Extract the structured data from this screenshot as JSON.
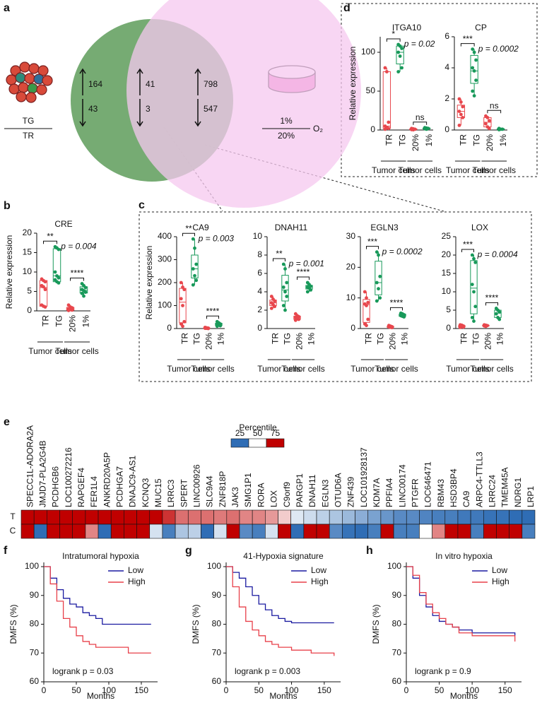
{
  "chart_data": [
    {
      "type": "venn",
      "panel": "a",
      "sets": [
        {
          "label_top": "TG",
          "label_bottom": "TR"
        },
        {
          "label_top": "1%",
          "label_bottom": "20%",
          "unit": "O₂"
        }
      ],
      "regions": [
        {
          "up": 164,
          "down": 43
        },
        {
          "up": 41,
          "down": 3
        },
        {
          "up": 798,
          "down": 547
        }
      ],
      "colors": [
        "#6fa76c",
        "#f6c8ef"
      ]
    },
    {
      "type": "box",
      "panel": "b",
      "title": "CRE",
      "ylabel": "Relative expression",
      "categories": [
        "TR",
        "TG",
        "20%",
        "1%"
      ],
      "groups": [
        "Tumor cells",
        "Tumor cells"
      ],
      "colors": [
        "#e8474d",
        "#18995a",
        "#e8474d",
        "#18995a"
      ],
      "points": [
        [
          8.2,
          7.8,
          7.5,
          6.5,
          6.2,
          5.5,
          1.5,
          1.2,
          1.0
        ],
        [
          16.5,
          16.2,
          15.8,
          10,
          9,
          8.5,
          8,
          7.5,
          7.2
        ],
        [
          1.5,
          1,
          0.8,
          0.5,
          0.3,
          0.2,
          0.1
        ],
        [
          7,
          6.5,
          6,
          5.5,
          5.2,
          4.8,
          4.5,
          3.8
        ]
      ],
      "boxes": [
        [
          1.0,
          1.2,
          6.0,
          7.8,
          8.2
        ],
        [
          7.2,
          7.5,
          9,
          16,
          16.5
        ],
        [
          0.1,
          0.2,
          0.5,
          0.9,
          1.5
        ],
        [
          3.8,
          4.6,
          5.3,
          6.2,
          7
        ]
      ],
      "annotations": [
        "**",
        "p = 0.004",
        "****"
      ],
      "ylim": [
        0,
        20
      ],
      "yticks": [
        0,
        5,
        10,
        15,
        20
      ]
    },
    {
      "type": "box",
      "panel": "c",
      "title": "CA9",
      "ylabel": "Relative expression",
      "categories": [
        "TR",
        "TG",
        "20%",
        "1%"
      ],
      "groups": [
        "Tumor cells",
        "Tumor cells"
      ],
      "colors": [
        "#e8474d",
        "#18995a",
        "#e8474d",
        "#18995a"
      ],
      "points": [
        [
          200,
          180,
          170,
          130,
          100,
          30,
          20,
          10
        ],
        [
          390,
          350,
          280,
          260,
          230,
          210,
          190
        ],
        [
          5,
          3,
          2,
          1,
          1,
          0
        ],
        [
          30,
          25,
          20,
          18,
          15,
          12,
          10
        ]
      ],
      "boxes": [
        [
          10,
          25,
          115,
          175,
          200
        ],
        [
          190,
          220,
          260,
          320,
          390
        ],
        [
          0,
          1,
          1.5,
          2.5,
          5
        ],
        [
          10,
          13,
          18,
          23,
          30
        ]
      ],
      "annotations": [
        "**",
        "p = 0.003",
        "****"
      ],
      "ylim": [
        0,
        400
      ],
      "yticks": [
        0,
        100,
        200,
        300,
        400
      ]
    },
    {
      "type": "box",
      "title": "DNAH11",
      "categories": [
        "TR",
        "TG",
        "20%",
        "1%"
      ],
      "groups": [
        "Tumor cells",
        "Tumor cells"
      ],
      "colors": [
        "#e8474d",
        "#18995a",
        "#e8474d",
        "#18995a"
      ],
      "points": [
        [
          3.5,
          3.2,
          3,
          2.8,
          2.6,
          2.4,
          2.2
        ],
        [
          7,
          6.5,
          5,
          4.5,
          4,
          3.5,
          2.5,
          2
        ],
        [
          1.6,
          1.4,
          1.3,
          1.2,
          1.1,
          1,
          0.9
        ],
        [
          5,
          4.8,
          4.6,
          4.5,
          4.4,
          4.2,
          4
        ]
      ],
      "boxes": [
        [
          2.2,
          2.5,
          2.8,
          3.1,
          3.5
        ],
        [
          2,
          3,
          4.2,
          5.8,
          7
        ],
        [
          0.9,
          1,
          1.2,
          1.35,
          1.6
        ],
        [
          4,
          4.3,
          4.5,
          4.7,
          5
        ]
      ],
      "annotations": [
        "**",
        "p = 0.001",
        "****"
      ],
      "ylim": [
        0,
        10
      ],
      "yticks": [
        0,
        2,
        4,
        6,
        8,
        10
      ]
    },
    {
      "type": "box",
      "title": "EGLN3",
      "categories": [
        "TR",
        "TG",
        "20%",
        "1%"
      ],
      "groups": [
        "Tumor cells",
        "Tumor cells"
      ],
      "colors": [
        "#e8474d",
        "#18995a",
        "#e8474d",
        "#18995a"
      ],
      "points": [
        [
          12,
          10,
          8.5,
          8,
          7.5,
          3,
          1.5,
          1
        ],
        [
          25,
          24,
          17,
          15,
          13,
          10,
          9
        ],
        [
          1,
          0.8,
          0.6,
          0.5,
          0.4,
          0.3
        ],
        [
          5,
          4.8,
          4.5,
          4.2,
          4,
          3.8
        ]
      ],
      "boxes": [
        [
          1,
          2,
          7.8,
          9.5,
          12
        ],
        [
          9,
          11,
          15,
          22,
          25
        ],
        [
          0.3,
          0.4,
          0.55,
          0.75,
          1
        ],
        [
          3.8,
          4,
          4.3,
          4.7,
          5
        ]
      ],
      "annotations": [
        "***",
        "p = 0.0002",
        "****"
      ],
      "ylim": [
        0,
        30
      ],
      "yticks": [
        0,
        10,
        20,
        30
      ]
    },
    {
      "type": "box",
      "title": "LOX",
      "categories": [
        "TR",
        "TG",
        "20%",
        "1%"
      ],
      "groups": [
        "Tumor cells",
        "Tumor cells"
      ],
      "colors": [
        "#e8474d",
        "#18995a",
        "#e8474d",
        "#18995a"
      ],
      "points": [
        [
          1,
          0.9,
          0.7,
          0.6,
          0.5,
          0.4,
          0.3
        ],
        [
          20,
          19,
          18,
          12,
          10,
          6,
          3,
          2
        ],
        [
          1,
          0.9,
          0.8,
          0.7,
          0.6
        ],
        [
          5.5,
          5,
          4.5,
          4,
          3,
          2.5
        ]
      ],
      "boxes": [
        [
          0.3,
          0.4,
          0.6,
          0.8,
          1
        ],
        [
          2,
          4,
          11,
          18.5,
          20
        ],
        [
          0.6,
          0.7,
          0.8,
          0.9,
          1
        ],
        [
          2.5,
          3,
          4.2,
          5,
          5.5
        ]
      ],
      "annotations": [
        "***",
        "p = 0.0004",
        "****"
      ],
      "ylim": [
        0,
        25
      ],
      "yticks": [
        0,
        5,
        10,
        15,
        20,
        25
      ]
    },
    {
      "type": "box",
      "panel": "d",
      "title": "ITGA10",
      "ylabel": "Relative expression",
      "categories": [
        "TR",
        "TG",
        "20%",
        "1%"
      ],
      "groups": [
        "Tumor cells",
        "Tumor cells"
      ],
      "colors": [
        "#e8474d",
        "#18995a",
        "#e8474d",
        "#18995a"
      ],
      "points": [
        [
          80,
          75,
          10,
          5,
          3,
          2,
          1
        ],
        [
          110,
          108,
          105,
          100,
          95,
          80,
          75
        ],
        [
          2,
          1.5,
          1,
          0.5,
          0.3
        ],
        [
          3,
          2.5,
          2,
          1.5,
          1
        ]
      ],
      "boxes": [
        [
          1,
          2,
          5,
          75,
          80
        ],
        [
          75,
          85,
          100,
          108,
          110
        ],
        [
          0.3,
          0.5,
          1,
          1.5,
          2
        ],
        [
          1,
          1.5,
          2,
          2.5,
          3
        ]
      ],
      "annotations": [
        "*",
        "p = 0.02",
        "ns"
      ],
      "ylim": [
        0,
        120
      ],
      "yticks": [
        0,
        50,
        100
      ]
    },
    {
      "type": "box",
      "title": "CP",
      "categories": [
        "TR",
        "TG",
        "20%",
        "1%"
      ],
      "groups": [
        "Tumor cells",
        "Tumor cells"
      ],
      "colors": [
        "#e8474d",
        "#18995a",
        "#e8474d",
        "#18995a"
      ],
      "points": [
        [
          2,
          1.8,
          1.5,
          1.2,
          1,
          0.8,
          0.3
        ],
        [
          5.2,
          5,
          4.5,
          4,
          3.8,
          3.2,
          2.5,
          2.2
        ],
        [
          0.9,
          0.8,
          0.6,
          0.4,
          0.2,
          0.1
        ],
        [
          0.1,
          0.05,
          0.05,
          0.02
        ]
      ],
      "boxes": [
        [
          0.3,
          0.8,
          1.2,
          1.6,
          2
        ],
        [
          2.2,
          3,
          3.8,
          4.8,
          5.2
        ],
        [
          0.1,
          0.2,
          0.5,
          0.8,
          0.9
        ],
        [
          0.02,
          0.03,
          0.05,
          0.08,
          0.1
        ]
      ],
      "annotations": [
        "***",
        "p = 0.0002",
        "ns"
      ],
      "ylim": [
        0,
        6
      ],
      "yticks": [
        0,
        2,
        4,
        6
      ]
    },
    {
      "type": "heatmap",
      "panel": "e",
      "legend_title": "Percentile",
      "colorbar_ticks": [
        25,
        50,
        75
      ],
      "colors": [
        "#2f6db5",
        "#ffffff",
        "#c00000"
      ],
      "columns": [
        "SPECC1L-ADORA2A",
        "JMJD7-PLA2G4B",
        "PCDHGB6",
        "LOC100272216",
        "RAPGEF4",
        "FER1L4",
        "ANKRD20A5P",
        "PCDHGA7",
        "DNAJC9-AS1",
        "KCNQ3",
        "MUC15",
        "LRRC3",
        "SPERT",
        "LINC00926",
        "SLC9A4",
        "ZNF818P",
        "JAK3",
        "SMG1P1",
        "RORA",
        "LOX",
        "C9orf9",
        "PARGP1",
        "DNAH11",
        "EGLN3",
        "OTUD6A",
        "ZNF439",
        "LOC101928137",
        "KDM7A",
        "PPFIA4",
        "LINC00174",
        "PTGFR",
        "LOC646471",
        "RBM43",
        "HSD3BP4",
        "CA9",
        "ARPC4-TTLL3",
        "LRRC24",
        "TMEM45A",
        "NDRG1",
        "LRP1"
      ],
      "rows": [
        "T",
        "C"
      ],
      "values": [
        [
          75,
          75,
          75,
          75,
          75,
          75,
          75,
          75,
          75,
          75,
          75,
          70,
          64,
          64,
          64,
          63,
          64,
          62,
          62,
          60,
          55,
          46,
          44,
          42,
          40,
          38,
          36,
          34,
          32,
          30,
          30,
          29,
          28,
          28,
          27,
          27,
          26,
          26,
          25,
          25
        ],
        [
          75,
          25,
          75,
          75,
          75,
          62,
          25,
          75,
          75,
          75,
          45,
          28,
          40,
          42,
          25,
          45,
          75,
          30,
          28,
          45,
          75,
          25,
          75,
          75,
          30,
          26,
          25,
          28,
          75,
          28,
          28,
          50,
          62,
          75,
          75,
          28,
          75,
          75,
          75,
          28
        ]
      ]
    },
    {
      "type": "line",
      "panel": "f",
      "title": "Intratumoral hypoxia",
      "xlabel": "Months",
      "ylabel": "DMFS (%)",
      "annotation": "logrank p = 0.03",
      "legend": "upper right",
      "series": [
        {
          "name": "Low",
          "color": "#1a1aa0",
          "x": [
            0,
            10,
            20,
            30,
            40,
            50,
            60,
            70,
            80,
            90,
            100,
            165
          ],
          "values": [
            100,
            96,
            92,
            89,
            87,
            86,
            84,
            83,
            82,
            80,
            80,
            80
          ]
        },
        {
          "name": "High",
          "color": "#e8404a",
          "x": [
            0,
            10,
            20,
            30,
            40,
            50,
            60,
            70,
            80,
            100,
            130,
            165
          ],
          "values": [
            100,
            94,
            88,
            82,
            79,
            76,
            74,
            73,
            72,
            72,
            70,
            70
          ]
        }
      ],
      "xlim": [
        0,
        175
      ],
      "ylim": [
        60,
        100
      ],
      "xticks": [
        0,
        50,
        100,
        150
      ],
      "yticks": [
        60,
        70,
        80,
        90,
        100
      ]
    },
    {
      "type": "line",
      "panel": "g",
      "title": "41-Hypoxia signature",
      "xlabel": "Months",
      "ylabel": "DMFS (%)",
      "annotation": "logrank p = 0.003",
      "legend": "upper right",
      "series": [
        {
          "name": "Low",
          "color": "#1a1aa0",
          "x": [
            0,
            10,
            20,
            30,
            40,
            50,
            60,
            70,
            80,
            90,
            100,
            165
          ],
          "values": [
            100,
            98,
            96,
            93,
            90,
            87,
            85,
            83,
            82,
            81,
            80.5,
            80.5
          ]
        },
        {
          "name": "High",
          "color": "#e8404a",
          "x": [
            0,
            10,
            20,
            30,
            40,
            50,
            60,
            70,
            80,
            100,
            130,
            165
          ],
          "values": [
            100,
            93,
            86,
            81,
            78,
            76,
            74,
            73,
            72,
            71,
            70,
            69
          ]
        }
      ],
      "xlim": [
        0,
        175
      ],
      "ylim": [
        60,
        100
      ],
      "xticks": [
        0,
        50,
        100,
        150
      ],
      "yticks": [
        60,
        70,
        80,
        90,
        100
      ]
    },
    {
      "type": "line",
      "panel": "h",
      "title": "In vitro hypoxia",
      "xlabel": "Months",
      "ylabel": "DMFS (%)",
      "annotation": "logrank p = 0.9",
      "legend": "upper right",
      "series": [
        {
          "name": "Low",
          "color": "#1a1aa0",
          "x": [
            0,
            10,
            20,
            30,
            40,
            50,
            60,
            70,
            80,
            100,
            165
          ],
          "values": [
            100,
            96,
            90,
            86,
            83,
            81,
            80,
            79,
            78,
            77,
            76
          ]
        },
        {
          "name": "High",
          "color": "#e8404a",
          "x": [
            0,
            10,
            20,
            30,
            40,
            50,
            60,
            70,
            80,
            100,
            165
          ],
          "values": [
            100,
            97,
            91,
            87,
            84,
            82,
            80,
            79,
            77,
            76,
            74
          ]
        }
      ],
      "xlim": [
        0,
        175
      ],
      "ylim": [
        60,
        100
      ],
      "xticks": [
        0,
        50,
        100,
        150
      ],
      "yticks": [
        60,
        70,
        80,
        90,
        100
      ]
    }
  ]
}
